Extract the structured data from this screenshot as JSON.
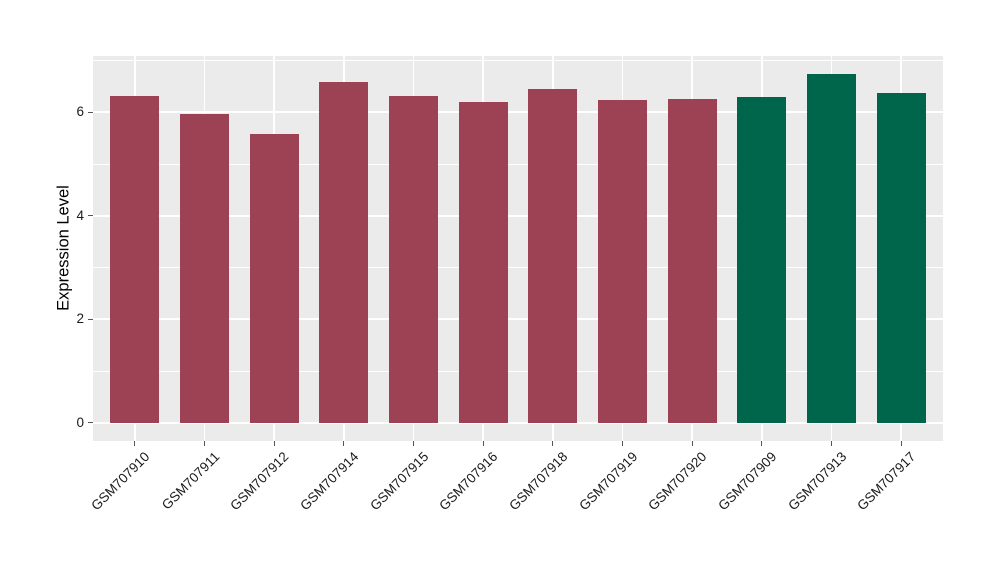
{
  "chart_data": {
    "type": "bar",
    "title": "",
    "xlabel": "",
    "ylabel": "Expression Level",
    "categories": [
      "GSM707910",
      "GSM707911",
      "GSM707912",
      "GSM707914",
      "GSM707915",
      "GSM707916",
      "GSM707918",
      "GSM707919",
      "GSM707920",
      "GSM707909",
      "GSM707913",
      "GSM707917"
    ],
    "values": [
      6.32,
      5.97,
      5.58,
      6.59,
      6.32,
      6.21,
      6.45,
      6.24,
      6.26,
      6.3,
      6.74,
      6.37
    ],
    "groups": [
      "maroon",
      "maroon",
      "maroon",
      "maroon",
      "maroon",
      "maroon",
      "maroon",
      "maroon",
      "maroon",
      "green",
      "green",
      "green"
    ],
    "group_colors": {
      "maroon": "#9C4254",
      "green": "#00664B"
    },
    "yticks": [
      0,
      2,
      4,
      6
    ],
    "minor_yticks": [
      1,
      3,
      5,
      7
    ],
    "ylim": [
      -0.35,
      7.09
    ],
    "grid": true,
    "legend": "none",
    "panel_bg": "#EBEBEB",
    "grid_color": "#FFFFFF",
    "tick_color": "#555555",
    "text_color": "#1a1a1a",
    "bar_width_frac": 0.7,
    "x_label_rotation": -45
  }
}
